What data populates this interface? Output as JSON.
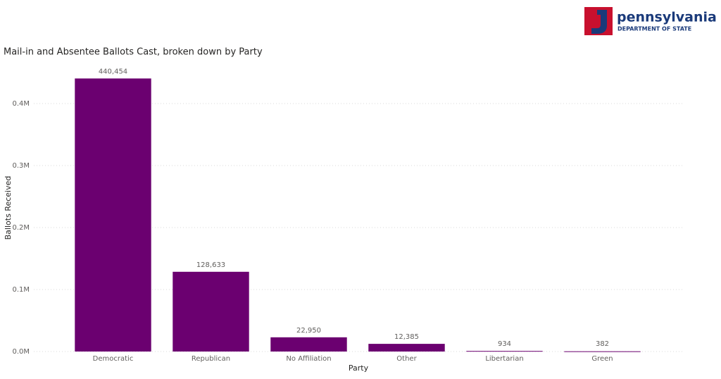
{
  "logo": {
    "name": "pennsylvania",
    "subtitle": "DEPARTMENT OF STATE"
  },
  "chart_data": {
    "type": "bar",
    "title": "Mail-in and Absentee Ballots Cast, broken down by Party",
    "x_label": "Party",
    "y_label": "Ballots Received",
    "categories": [
      "Democratic",
      "Republican",
      "No Affiliation",
      "Other",
      "Libertarian",
      "Green"
    ],
    "values": [
      440454,
      128633,
      22950,
      12385,
      934,
      382
    ],
    "value_labels": [
      "440,454",
      "128,633",
      "22,950",
      "12,385",
      "934",
      "382"
    ],
    "color": "#6b0070",
    "ylim": [
      0,
      450000
    ],
    "yticks": [
      {
        "value": 0,
        "label": "0.0M"
      },
      {
        "value": 100000,
        "label": "0.1M"
      },
      {
        "value": 200000,
        "label": "0.2M"
      },
      {
        "value": 300000,
        "label": "0.3M"
      },
      {
        "value": 400000,
        "label": "0.4M"
      }
    ],
    "grid": true
  }
}
